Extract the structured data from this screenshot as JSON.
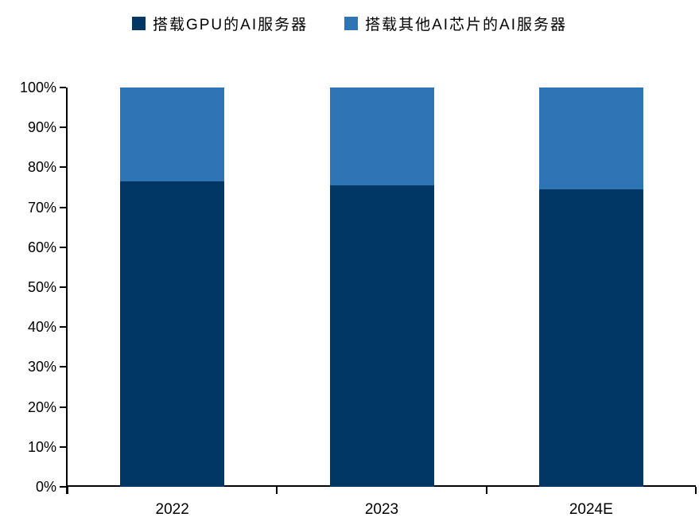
{
  "legend": {
    "items": [
      {
        "label": "搭载GPU的AI服务器",
        "color": "#003764"
      },
      {
        "label": "搭载其他AI芯片的AI服务器",
        "color": "#2E75B6"
      }
    ]
  },
  "chart_data": {
    "type": "bar",
    "stacked": true,
    "percent_stacked": true,
    "title": "",
    "xlabel": "",
    "ylabel": "",
    "categories": [
      "2022",
      "2023",
      "2024E"
    ],
    "series": [
      {
        "name": "搭载GPU的AI服务器",
        "color": "#003764",
        "values": [
          76.5,
          75.6,
          74.6
        ]
      },
      {
        "name": "搭载其他AI芯片的AI服务器",
        "color": "#2E75B6",
        "values": [
          23.5,
          24.4,
          25.4
        ]
      }
    ],
    "ylim": [
      0,
      100
    ],
    "ytick_step": 10,
    "ytick_suffix": "%",
    "ytick_labels": [
      "0%",
      "10%",
      "20%",
      "30%",
      "40%",
      "50%",
      "60%",
      "70%",
      "80%",
      "90%",
      "100%"
    ],
    "grid": false,
    "legend_position": "top",
    "axis_color": "#000000",
    "background_color": "#ffffff"
  }
}
